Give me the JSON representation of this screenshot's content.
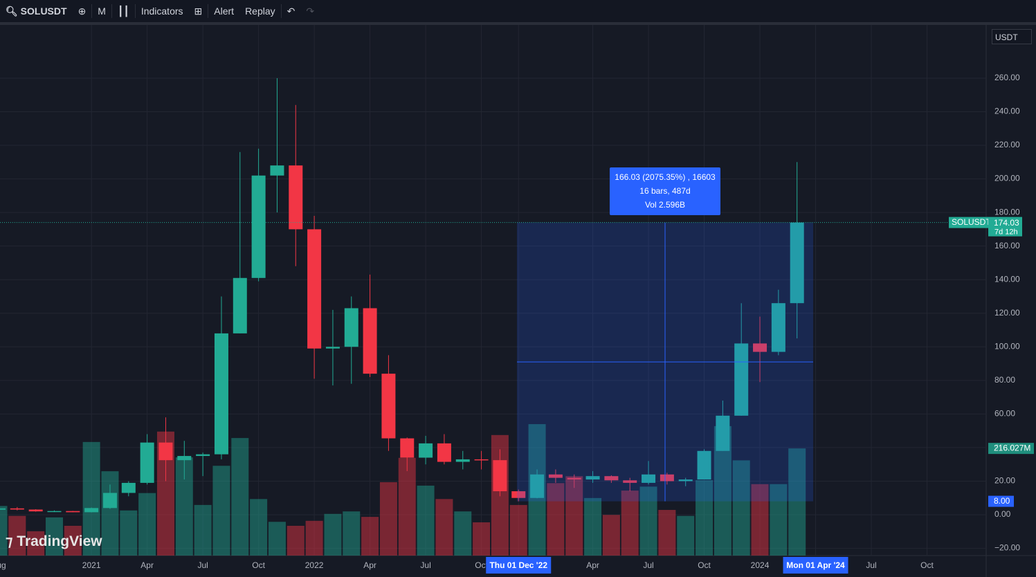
{
  "toolbar": {
    "symbol": "SOLUSDT",
    "interval": "M",
    "indicators": "Indicators",
    "alert": "Alert",
    "replay": "Replay"
  },
  "currency": "USDT",
  "watermark": "TradingView",
  "chart_data": {
    "type": "candlestick",
    "categories": [
      "Aug",
      null,
      null,
      null,
      null,
      "2021",
      null,
      null,
      "Apr",
      null,
      null,
      "Jul",
      null,
      null,
      "Oct",
      null,
      null,
      "2022",
      null,
      null,
      "Apr",
      null,
      null,
      "Jul",
      null,
      null,
      "Oct",
      null,
      "Thu 01 Dec '22",
      null,
      null,
      null,
      "Apr",
      null,
      null,
      "Jul",
      null,
      null,
      "Oct",
      null,
      null,
      "2024",
      null,
      null,
      "Mon 01 Apr '24",
      null,
      null,
      "Jul",
      null,
      null,
      "Oct"
    ],
    "open": [
      3.0,
      3.8,
      3.1,
      2.0,
      2.2,
      1.5,
      4.0,
      13,
      19,
      43,
      32.5,
      35,
      36,
      108,
      141,
      202,
      208,
      170,
      99,
      100,
      123,
      84,
      45.5,
      34,
      42.5,
      31.5,
      33,
      32.5,
      14,
      10,
      24,
      22,
      21,
      23,
      20.5,
      19,
      24,
      20,
      21,
      38,
      59,
      102,
      97,
      126,
      null,
      null,
      null,
      null,
      null,
      null,
      null
    ],
    "high": [
      4.9,
      4.6,
      3.3,
      2.6,
      2.3,
      4.3,
      18,
      20,
      48,
      58,
      44,
      37,
      130,
      216,
      218,
      260,
      244,
      178,
      122,
      130,
      143,
      95,
      46,
      47,
      48,
      38,
      38,
      39,
      15,
      27,
      27,
      24,
      26,
      23.5,
      22,
      32,
      25,
      22,
      39,
      68,
      126,
      118,
      134,
      210,
      null,
      null,
      null,
      null,
      null,
      null,
      null
    ],
    "low": [
      2.0,
      2.6,
      1.8,
      1.6,
      1.5,
      1.4,
      3.5,
      11,
      18,
      20,
      21,
      23,
      33,
      108,
      139,
      180,
      148,
      81,
      77,
      78,
      82,
      38,
      26,
      30,
      30,
      27,
      27,
      11,
      8,
      9.8,
      19,
      16,
      19,
      19,
      14,
      18,
      18,
      17,
      21,
      38,
      59,
      79,
      95,
      105,
      null,
      null,
      null,
      null,
      null,
      null,
      null
    ],
    "close": [
      3.8,
      3.1,
      2.0,
      2.2,
      1.5,
      4.0,
      13,
      19,
      43,
      32.5,
      35,
      36,
      108,
      141,
      202,
      208,
      170,
      99,
      100,
      123,
      84,
      45.5,
      34,
      42.5,
      31.5,
      33,
      32.5,
      14,
      10,
      24,
      22,
      21,
      23,
      20.5,
      19,
      24,
      20,
      21,
      38,
      59,
      102,
      97,
      126,
      174.03,
      null,
      null,
      null,
      null,
      null,
      null,
      null
    ],
    "volume": [
      100,
      80,
      49,
      77,
      60,
      229,
      170,
      91,
      126,
      250,
      198,
      102,
      181,
      237,
      114,
      68,
      60,
      70,
      84,
      89,
      78,
      148,
      197,
      141,
      114,
      89,
      67,
      243,
      102,
      265,
      146,
      160,
      116,
      82,
      131,
      139,
      92,
      80,
      152,
      261,
      192,
      144,
      144,
      216.027,
      null,
      null,
      null,
      null,
      null,
      null,
      null
    ],
    "ylim": [
      -24.3,
      291.7
    ],
    "yticks": [
      {
        "value": -20,
        "label": "−20.00"
      },
      {
        "value": 0,
        "label": "0.00"
      },
      {
        "value": 20,
        "label": "20.00"
      },
      {
        "value": 40,
        "label": "40.00"
      },
      {
        "value": 60,
        "label": "60.00"
      },
      {
        "value": 80,
        "label": "80.00"
      },
      {
        "value": 100,
        "label": "100.00"
      },
      {
        "value": 120,
        "label": "120.00"
      },
      {
        "value": 140,
        "label": "140.00"
      },
      {
        "value": 160,
        "label": "160.00"
      },
      {
        "value": 180,
        "label": "180.00"
      },
      {
        "value": 200,
        "label": "200.00"
      },
      {
        "value": 220,
        "label": "220.00"
      },
      {
        "value": 240,
        "label": "240.00"
      },
      {
        "value": 260,
        "label": "260.00"
      }
    ],
    "volume_ylim": [
      0,
      1070
    ],
    "volume_last": {
      "value": 216.027,
      "label": "216.027M"
    },
    "countdown": "7d 12h",
    "measure": {
      "from_price": {
        "value": 8,
        "label": "8.00"
      },
      "to_price": 174.03,
      "text": [
        "166.03 (2075.35%) , 16603",
        "16 bars, 487d",
        "Vol 2.596B"
      ]
    },
    "up_color": "#22ab94",
    "down_color": "#f23645",
    "grid": true
  }
}
